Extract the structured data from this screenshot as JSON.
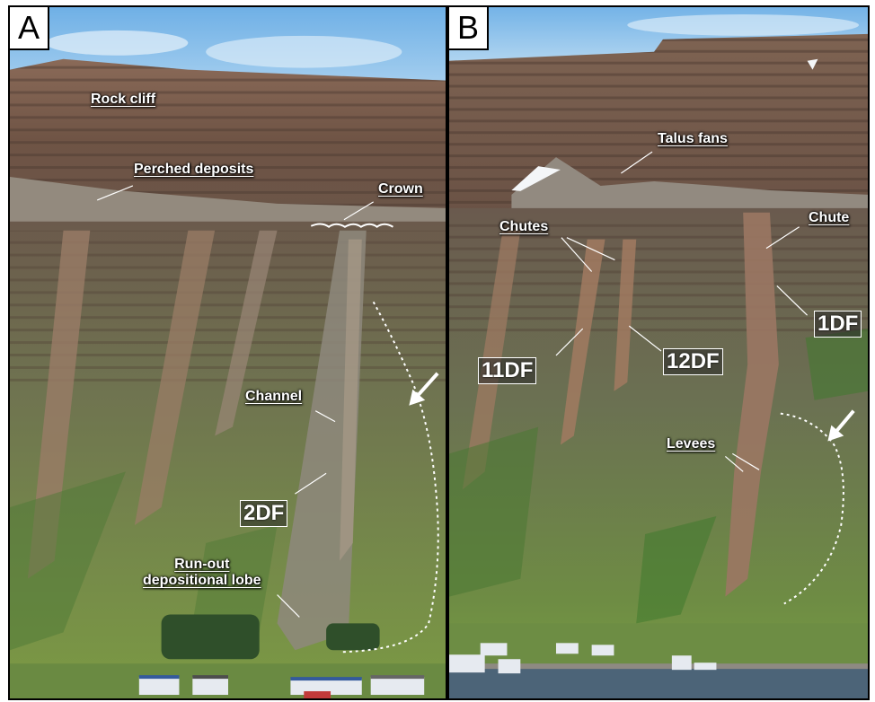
{
  "panels": {
    "a": {
      "letter": "A",
      "labels": {
        "rock_cliff": "Rock cliff",
        "perched_deposits": "Perched deposits",
        "crown": "Crown",
        "channel": "Channel",
        "run_out_line1": "Run-out",
        "run_out_line2": "depositional lobe"
      },
      "boxed": {
        "flow": "2DF"
      }
    },
    "b": {
      "letter": "B",
      "labels": {
        "talus_fans": "Talus fans",
        "chutes": "Chutes",
        "chute": "Chute",
        "levees": "Levees"
      },
      "boxed": {
        "flow_1": "1DF",
        "flow_11": "11DF",
        "flow_12": "12DF"
      }
    }
  },
  "colors": {
    "sky": "#8fc3ec",
    "cliff": "#7a5f4d",
    "talus": "#9a9488",
    "vegetation": "#6f8a3e",
    "debris_flow": "#b78a6c",
    "water": "#4c6478",
    "annotation": "#ffffff"
  }
}
